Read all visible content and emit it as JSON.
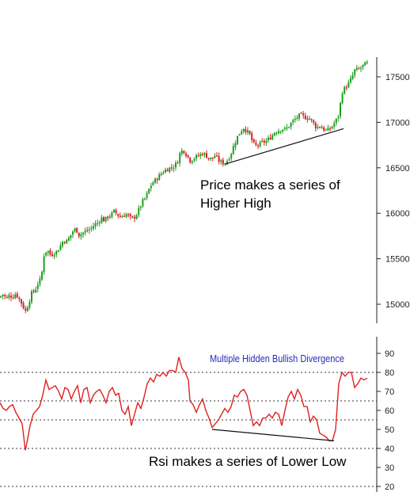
{
  "chart_data": [
    {
      "type": "candlestick",
      "ylim": [
        14800,
        17700
      ],
      "y_ticks": [
        "17500",
        "17000",
        "16500",
        "16000",
        "15500",
        "15000"
      ],
      "y_tick_values": [
        17500,
        17000,
        16500,
        16000,
        15500,
        15000
      ],
      "up_color": "#1f9d1f",
      "down_color": "#d62020",
      "close_path": [
        [
          0,
          15080
        ],
        [
          4,
          15110
        ],
        [
          8,
          15060
        ],
        [
          12,
          15100
        ],
        [
          16,
          15080
        ],
        [
          20,
          15120
        ],
        [
          24,
          15060
        ],
        [
          28,
          15000
        ],
        [
          32,
          14920
        ],
        [
          36,
          15010
        ],
        [
          40,
          15120
        ],
        [
          44,
          15150
        ],
        [
          48,
          15230
        ],
        [
          52,
          15280
        ],
        [
          56,
          15570
        ],
        [
          60,
          15590
        ],
        [
          64,
          15540
        ],
        [
          68,
          15560
        ],
        [
          72,
          15580
        ],
        [
          76,
          15640
        ],
        [
          80,
          15700
        ],
        [
          84,
          15690
        ],
        [
          88,
          15740
        ],
        [
          92,
          15800
        ],
        [
          96,
          15830
        ],
        [
          100,
          15760
        ],
        [
          104,
          15780
        ],
        [
          108,
          15800
        ],
        [
          112,
          15820
        ],
        [
          116,
          15840
        ],
        [
          120,
          15880
        ],
        [
          124,
          15900
        ],
        [
          128,
          15950
        ],
        [
          132,
          15920
        ],
        [
          136,
          15960
        ],
        [
          140,
          15980
        ],
        [
          144,
          16020
        ],
        [
          148,
          15990
        ],
        [
          152,
          15960
        ],
        [
          156,
          15980
        ],
        [
          160,
          15990
        ],
        [
          164,
          15950
        ],
        [
          168,
          15940
        ],
        [
          172,
          15980
        ],
        [
          176,
          16050
        ],
        [
          180,
          16130
        ],
        [
          184,
          16170
        ],
        [
          188,
          16260
        ],
        [
          192,
          16330
        ],
        [
          196,
          16360
        ],
        [
          200,
          16400
        ],
        [
          204,
          16440
        ],
        [
          208,
          16470
        ],
        [
          212,
          16490
        ],
        [
          216,
          16500
        ],
        [
          220,
          16520
        ],
        [
          224,
          16560
        ],
        [
          228,
          16680
        ],
        [
          232,
          16690
        ],
        [
          236,
          16640
        ],
        [
          240,
          16580
        ],
        [
          244,
          16600
        ],
        [
          248,
          16620
        ],
        [
          252,
          16640
        ],
        [
          256,
          16660
        ],
        [
          260,
          16640
        ],
        [
          264,
          16600
        ],
        [
          268,
          16600
        ],
        [
          272,
          16640
        ],
        [
          276,
          16580
        ],
        [
          280,
          16560
        ],
        [
          284,
          16550
        ],
        [
          288,
          16590
        ],
        [
          292,
          16660
        ],
        [
          296,
          16760
        ],
        [
          300,
          16840
        ],
        [
          304,
          16900
        ],
        [
          308,
          16940
        ],
        [
          312,
          16900
        ],
        [
          316,
          16860
        ],
        [
          320,
          16760
        ],
        [
          324,
          16740
        ],
        [
          328,
          16760
        ],
        [
          332,
          16780
        ],
        [
          336,
          16790
        ],
        [
          340,
          16820
        ],
        [
          344,
          16860
        ],
        [
          348,
          16900
        ],
        [
          352,
          16910
        ],
        [
          356,
          16930
        ],
        [
          360,
          16920
        ],
        [
          364,
          16950
        ],
        [
          368,
          16990
        ],
        [
          372,
          17030
        ],
        [
          376,
          17060
        ],
        [
          380,
          17080
        ],
        [
          384,
          17060
        ],
        [
          388,
          17050
        ],
        [
          392,
          17040
        ],
        [
          396,
          16990
        ],
        [
          400,
          16940
        ],
        [
          404,
          16960
        ],
        [
          408,
          16930
        ],
        [
          412,
          16910
        ],
        [
          416,
          16920
        ],
        [
          420,
          16960
        ],
        [
          424,
          17010
        ],
        [
          428,
          17080
        ],
        [
          432,
          17330
        ],
        [
          436,
          17380
        ],
        [
          440,
          17420
        ],
        [
          444,
          17480
        ],
        [
          448,
          17570
        ],
        [
          452,
          17580
        ],
        [
          456,
          17600
        ],
        [
          460,
          17630
        ],
        [
          464,
          17650
        ]
      ],
      "trendline": [
        [
          284,
          16540
        ],
        [
          434,
          16930
        ]
      ]
    },
    {
      "type": "line",
      "series": [
        {
          "color": "#e02020",
          "points": [
            [
              0,
              64
            ],
            [
              4,
              61
            ],
            [
              8,
              60
            ],
            [
              12,
              62
            ],
            [
              16,
              63
            ],
            [
              20,
              59
            ],
            [
              24,
              56
            ],
            [
              28,
              53
            ],
            [
              32,
              39
            ],
            [
              34,
              43
            ],
            [
              38,
              52
            ],
            [
              42,
              58
            ],
            [
              46,
              60
            ],
            [
              50,
              62
            ],
            [
              54,
              68
            ],
            [
              58,
              76
            ],
            [
              62,
              71
            ],
            [
              66,
              72
            ],
            [
              70,
              73
            ],
            [
              74,
              70
            ],
            [
              78,
              66
            ],
            [
              82,
              72
            ],
            [
              86,
              71
            ],
            [
              90,
              66
            ],
            [
              94,
              70
            ],
            [
              98,
              73
            ],
            [
              102,
              64
            ],
            [
              106,
              71
            ],
            [
              110,
              72
            ],
            [
              114,
              64
            ],
            [
              118,
              68
            ],
            [
              122,
              70
            ],
            [
              126,
              71
            ],
            [
              130,
              68
            ],
            [
              134,
              64
            ],
            [
              138,
              70
            ],
            [
              142,
              72
            ],
            [
              146,
              68
            ],
            [
              150,
              69
            ],
            [
              154,
              60
            ],
            [
              158,
              58
            ],
            [
              162,
              62
            ],
            [
              166,
              52
            ],
            [
              170,
              58
            ],
            [
              174,
              64
            ],
            [
              178,
              61
            ],
            [
              182,
              67
            ],
            [
              186,
              74
            ],
            [
              190,
              77
            ],
            [
              194,
              75
            ],
            [
              198,
              79
            ],
            [
              202,
              78
            ],
            [
              206,
              80
            ],
            [
              210,
              78
            ],
            [
              214,
              81
            ],
            [
              218,
              81
            ],
            [
              222,
              80
            ],
            [
              226,
              88
            ],
            [
              230,
              82
            ],
            [
              234,
              80
            ],
            [
              238,
              76
            ],
            [
              240,
              65
            ],
            [
              244,
              63
            ],
            [
              248,
              59
            ],
            [
              252,
              63
            ],
            [
              256,
              66
            ],
            [
              260,
              60
            ],
            [
              264,
              56
            ],
            [
              268,
              51
            ],
            [
              272,
              53
            ],
            [
              276,
              55
            ],
            [
              280,
              58
            ],
            [
              284,
              61
            ],
            [
              288,
              59
            ],
            [
              292,
              62
            ],
            [
              296,
              68
            ],
            [
              300,
              67
            ],
            [
              304,
              70
            ],
            [
              308,
              71
            ],
            [
              312,
              68
            ],
            [
              316,
              60
            ],
            [
              320,
              52
            ],
            [
              324,
              54
            ],
            [
              328,
              52
            ],
            [
              332,
              56
            ],
            [
              336,
              56
            ],
            [
              340,
              58
            ],
            [
              344,
              56
            ],
            [
              348,
              59
            ],
            [
              352,
              58
            ],
            [
              356,
              52
            ],
            [
              360,
              60
            ],
            [
              364,
              67
            ],
            [
              368,
              70
            ],
            [
              372,
              66
            ],
            [
              376,
              71
            ],
            [
              380,
              68
            ],
            [
              384,
              62
            ],
            [
              388,
              62
            ],
            [
              392,
              54
            ],
            [
              396,
              57
            ],
            [
              400,
              55
            ],
            [
              404,
              48
            ],
            [
              408,
              47
            ],
            [
              412,
              46
            ],
            [
              416,
              44
            ],
            [
              420,
              44
            ],
            [
              424,
              50
            ],
            [
              428,
              74
            ],
            [
              432,
              80
            ],
            [
              436,
              78
            ],
            [
              440,
              80
            ],
            [
              444,
              80
            ],
            [
              448,
              72
            ],
            [
              452,
              74
            ],
            [
              456,
              77
            ],
            [
              460,
              76
            ],
            [
              464,
              77
            ]
          ]
        }
      ],
      "ylim": [
        16,
        94
      ],
      "y_ticks": [
        "90",
        "80",
        "70",
        "60",
        "50",
        "40",
        "30",
        "20"
      ],
      "y_tick_values": [
        90,
        80,
        70,
        60,
        50,
        40,
        30,
        20
      ],
      "reference_levels": [
        80,
        65,
        55,
        40,
        20
      ],
      "trendline": [
        [
          268,
          50
        ],
        [
          422,
          44
        ]
      ]
    }
  ],
  "annotations": {
    "price_line1": "Price makes a series of",
    "price_line2": "Higher High",
    "rsi_title": "Multiple Hidden Bullish Divergence",
    "rsi_note": "Rsi makes a series of Lower Low"
  }
}
